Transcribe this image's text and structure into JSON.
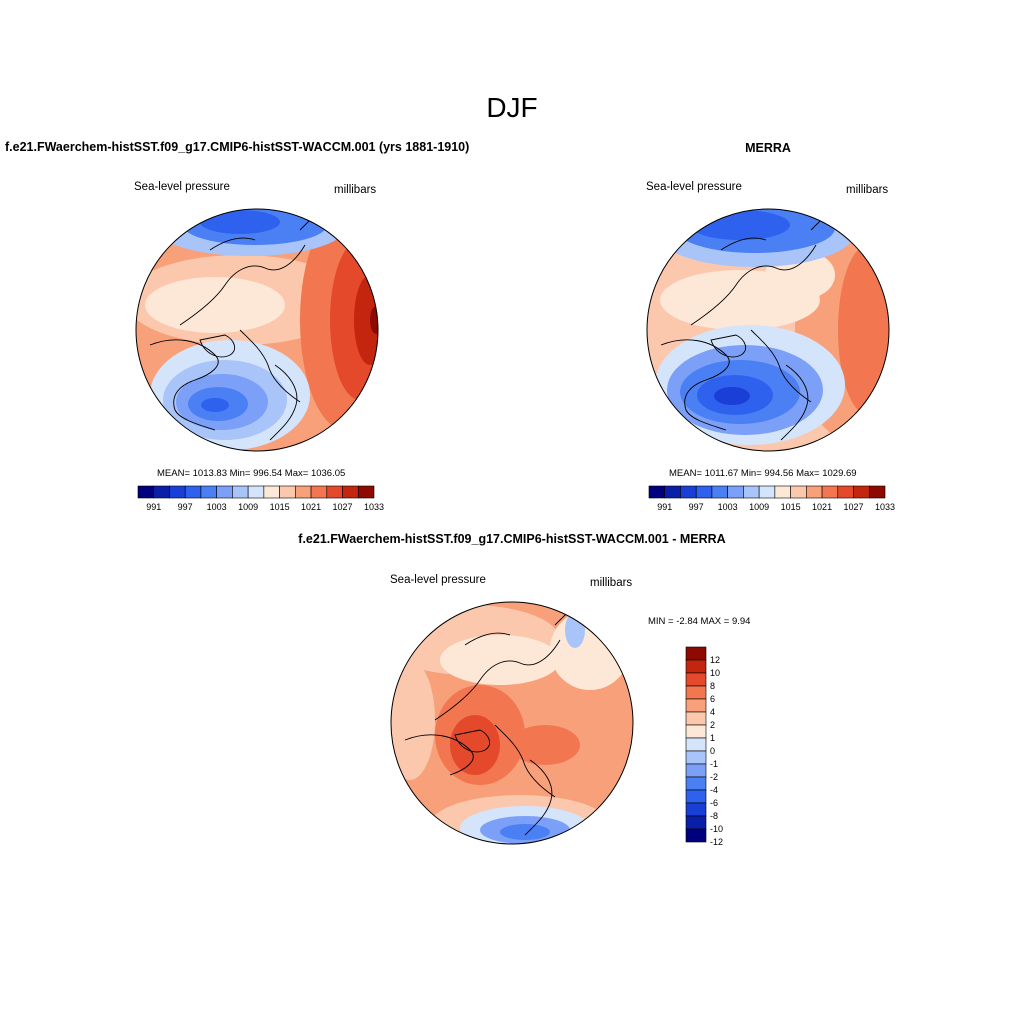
{
  "title": "DJF",
  "panels": [
    {
      "heading": "f.e21.FWaerchem-histSST.f09_g17.CMIP6-histSST-WACCM.001 (yrs 1881-1910)",
      "variable": "Sea-level pressure",
      "units": "millibars",
      "stats": "MEAN= 1013.83  Min= 996.54  Max= 1036.05",
      "colorbar_ticks": [
        "991",
        "997",
        "1003",
        "1009",
        "1015",
        "1021",
        "1027",
        "1033"
      ]
    },
    {
      "heading": "MERRA",
      "variable": "Sea-level pressure",
      "units": "millibars",
      "stats": "MEAN= 1011.67  Min= 994.56  Max= 1029.69",
      "colorbar_ticks": [
        "991",
        "997",
        "1003",
        "1009",
        "1015",
        "1021",
        "1027",
        "1033"
      ]
    },
    {
      "heading": "f.e21.FWaerchem-histSST.f09_g17.CMIP6-histSST-WACCM.001 - MERRA",
      "variable": "Sea-level pressure",
      "units": "millibars",
      "minmax": "MIN =  -2.84 MAX =   9.94",
      "colorbar_ticks": [
        "12",
        "10",
        "8",
        "6",
        "4",
        "2",
        "1",
        "0",
        "-1",
        "-2",
        "-4",
        "-6",
        "-8",
        "-10",
        "-12"
      ]
    }
  ],
  "palette": [
    "#00007f",
    "#0a1fa8",
    "#1a3fd6",
    "#2e62ee",
    "#4b80f5",
    "#7ca0f7",
    "#a9c4f9",
    "#d4e4fb",
    "#fde8d8",
    "#fbc8ad",
    "#f7a07a",
    "#f27650",
    "#e3492a",
    "#c4250f",
    "#8e0a00"
  ]
}
